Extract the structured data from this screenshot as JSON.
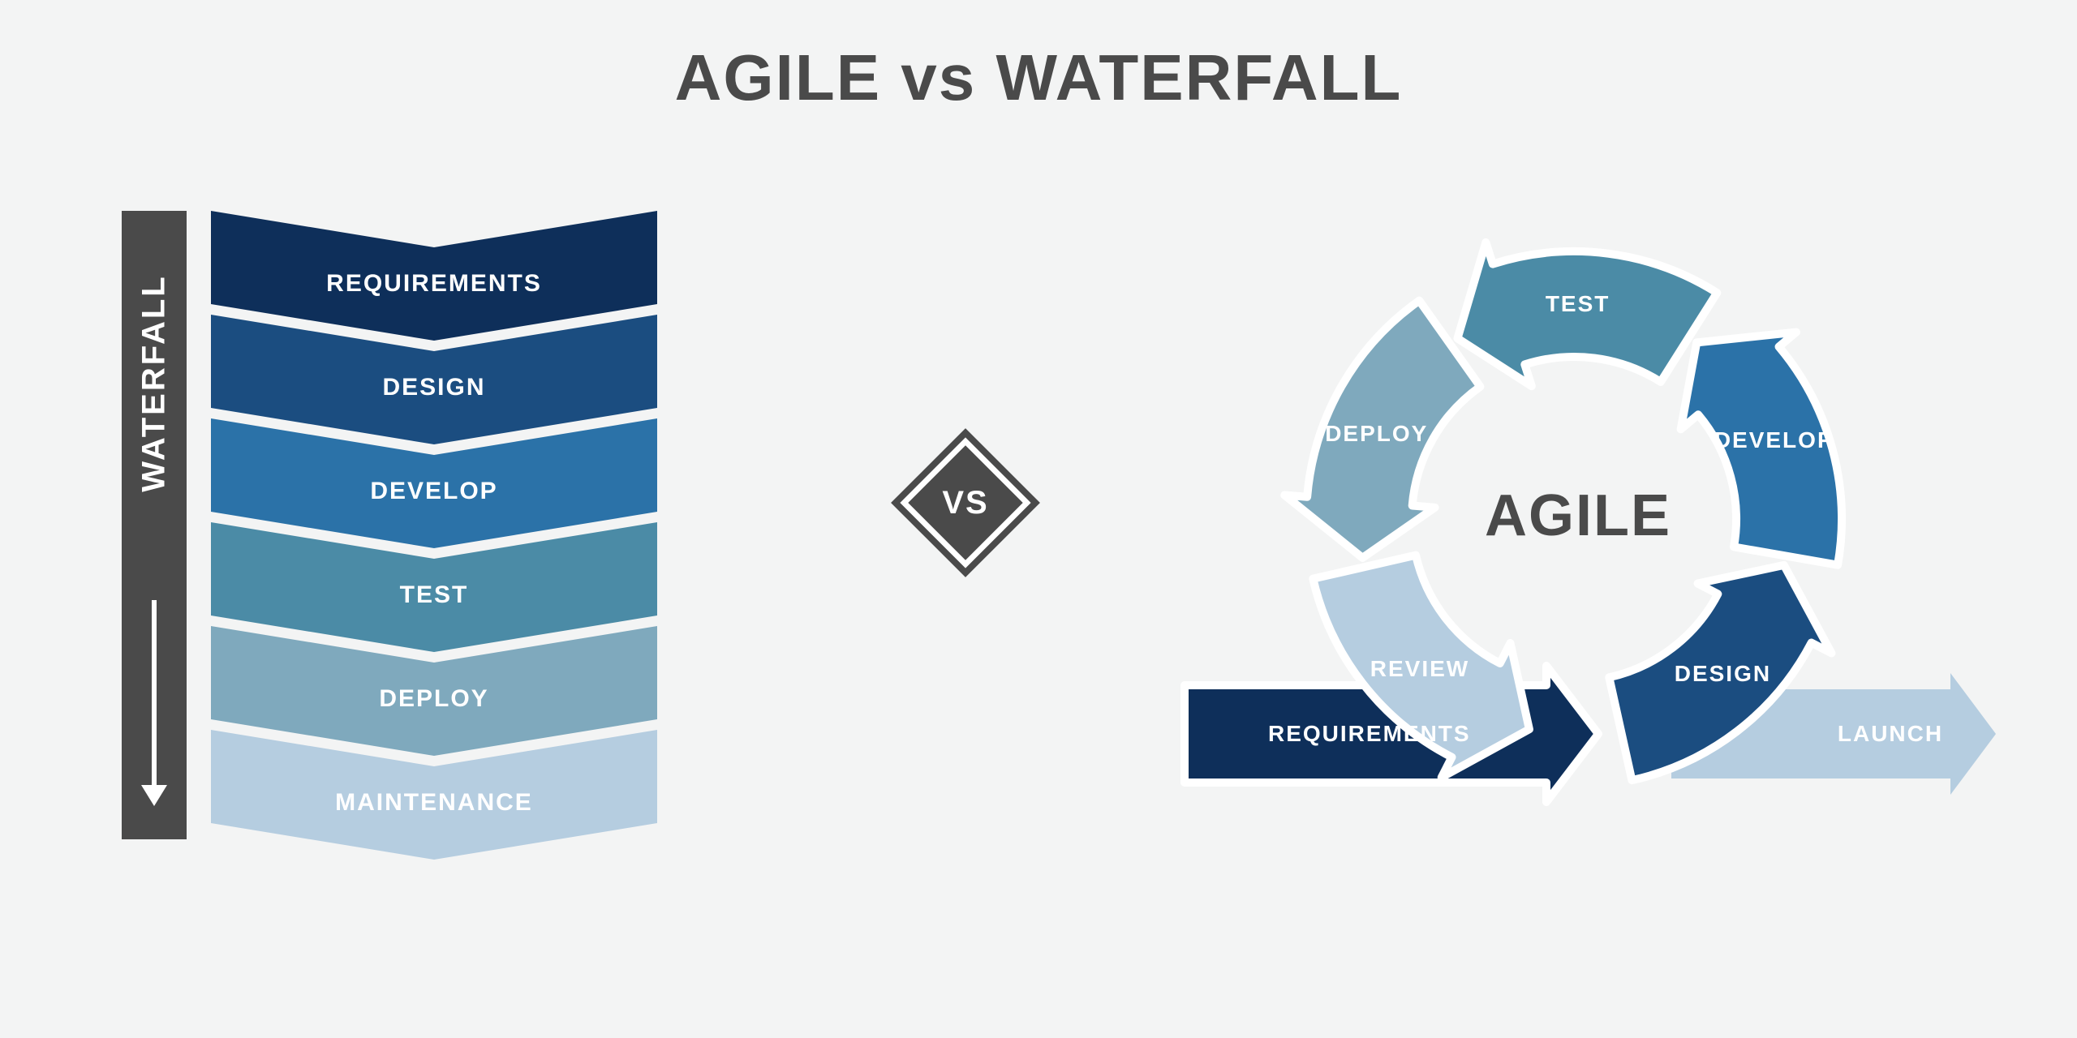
{
  "title": "AGILE vs WATERFALL",
  "vs_label": "VS",
  "background_color": "#f3f4f4",
  "text_color": "#4a4a4a",
  "white": "#ffffff",
  "waterfall": {
    "bar_label": "WATERFALL",
    "bar_color": "#4a4a4a",
    "chevron_width": 550,
    "chevron_height": 160,
    "chevron_gap": 128,
    "notch_depth": 45,
    "steps": [
      {
        "label": "REQUIREMENTS",
        "color": "#0e2f5a"
      },
      {
        "label": "DESIGN",
        "color": "#1b4d80"
      },
      {
        "label": "DEVELOP",
        "color": "#2b72a8"
      },
      {
        "label": "TEST",
        "color": "#4b8ba6"
      },
      {
        "label": "DEPLOY",
        "color": "#7fa9bd"
      },
      {
        "label": "MAINTENANCE",
        "color": "#b5cde0"
      }
    ]
  },
  "agile": {
    "center_label": "AGILE",
    "requirements": {
      "label": "REQUIREMENTS",
      "color": "#0e2f5a"
    },
    "launch": {
      "label": "LAUNCH",
      "color": "#b5cde0"
    },
    "segments": [
      {
        "label": "DESIGN",
        "color": "#1b4d80"
      },
      {
        "label": "DEVELOP",
        "color": "#2b72a8"
      },
      {
        "label": "TEST",
        "color": "#4b8ba6"
      },
      {
        "label": "DEPLOY",
        "color": "#7fa9bd"
      },
      {
        "label": "REVIEW",
        "color": "#b5cde0"
      }
    ]
  }
}
